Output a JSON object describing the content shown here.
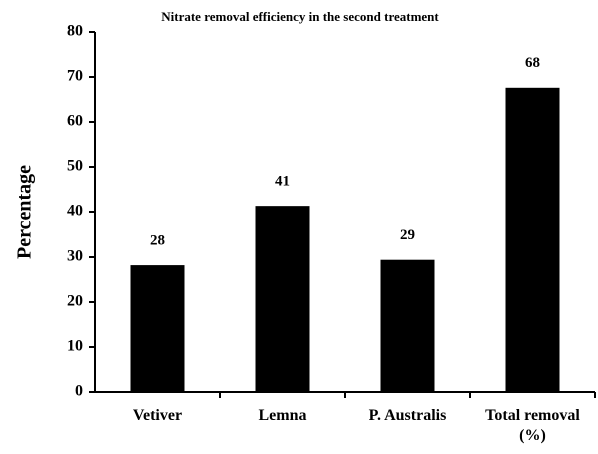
{
  "chart_data": {
    "type": "bar",
    "title": "Nitrate removal efficiency in the second treatment",
    "y_label": "Percentage",
    "categories": [
      "Vetiver",
      "Lemna",
      "P. Australis",
      "Total removal (%)"
    ],
    "values": [
      28.2,
      41.3,
      29.4,
      67.6
    ],
    "value_labels": [
      "28",
      "41",
      "29",
      "68"
    ],
    "color": "#000000",
    "ylim": [
      0,
      80
    ],
    "yticks": [
      0,
      10,
      20,
      30,
      40,
      50,
      60,
      70,
      80
    ],
    "grid": false
  }
}
